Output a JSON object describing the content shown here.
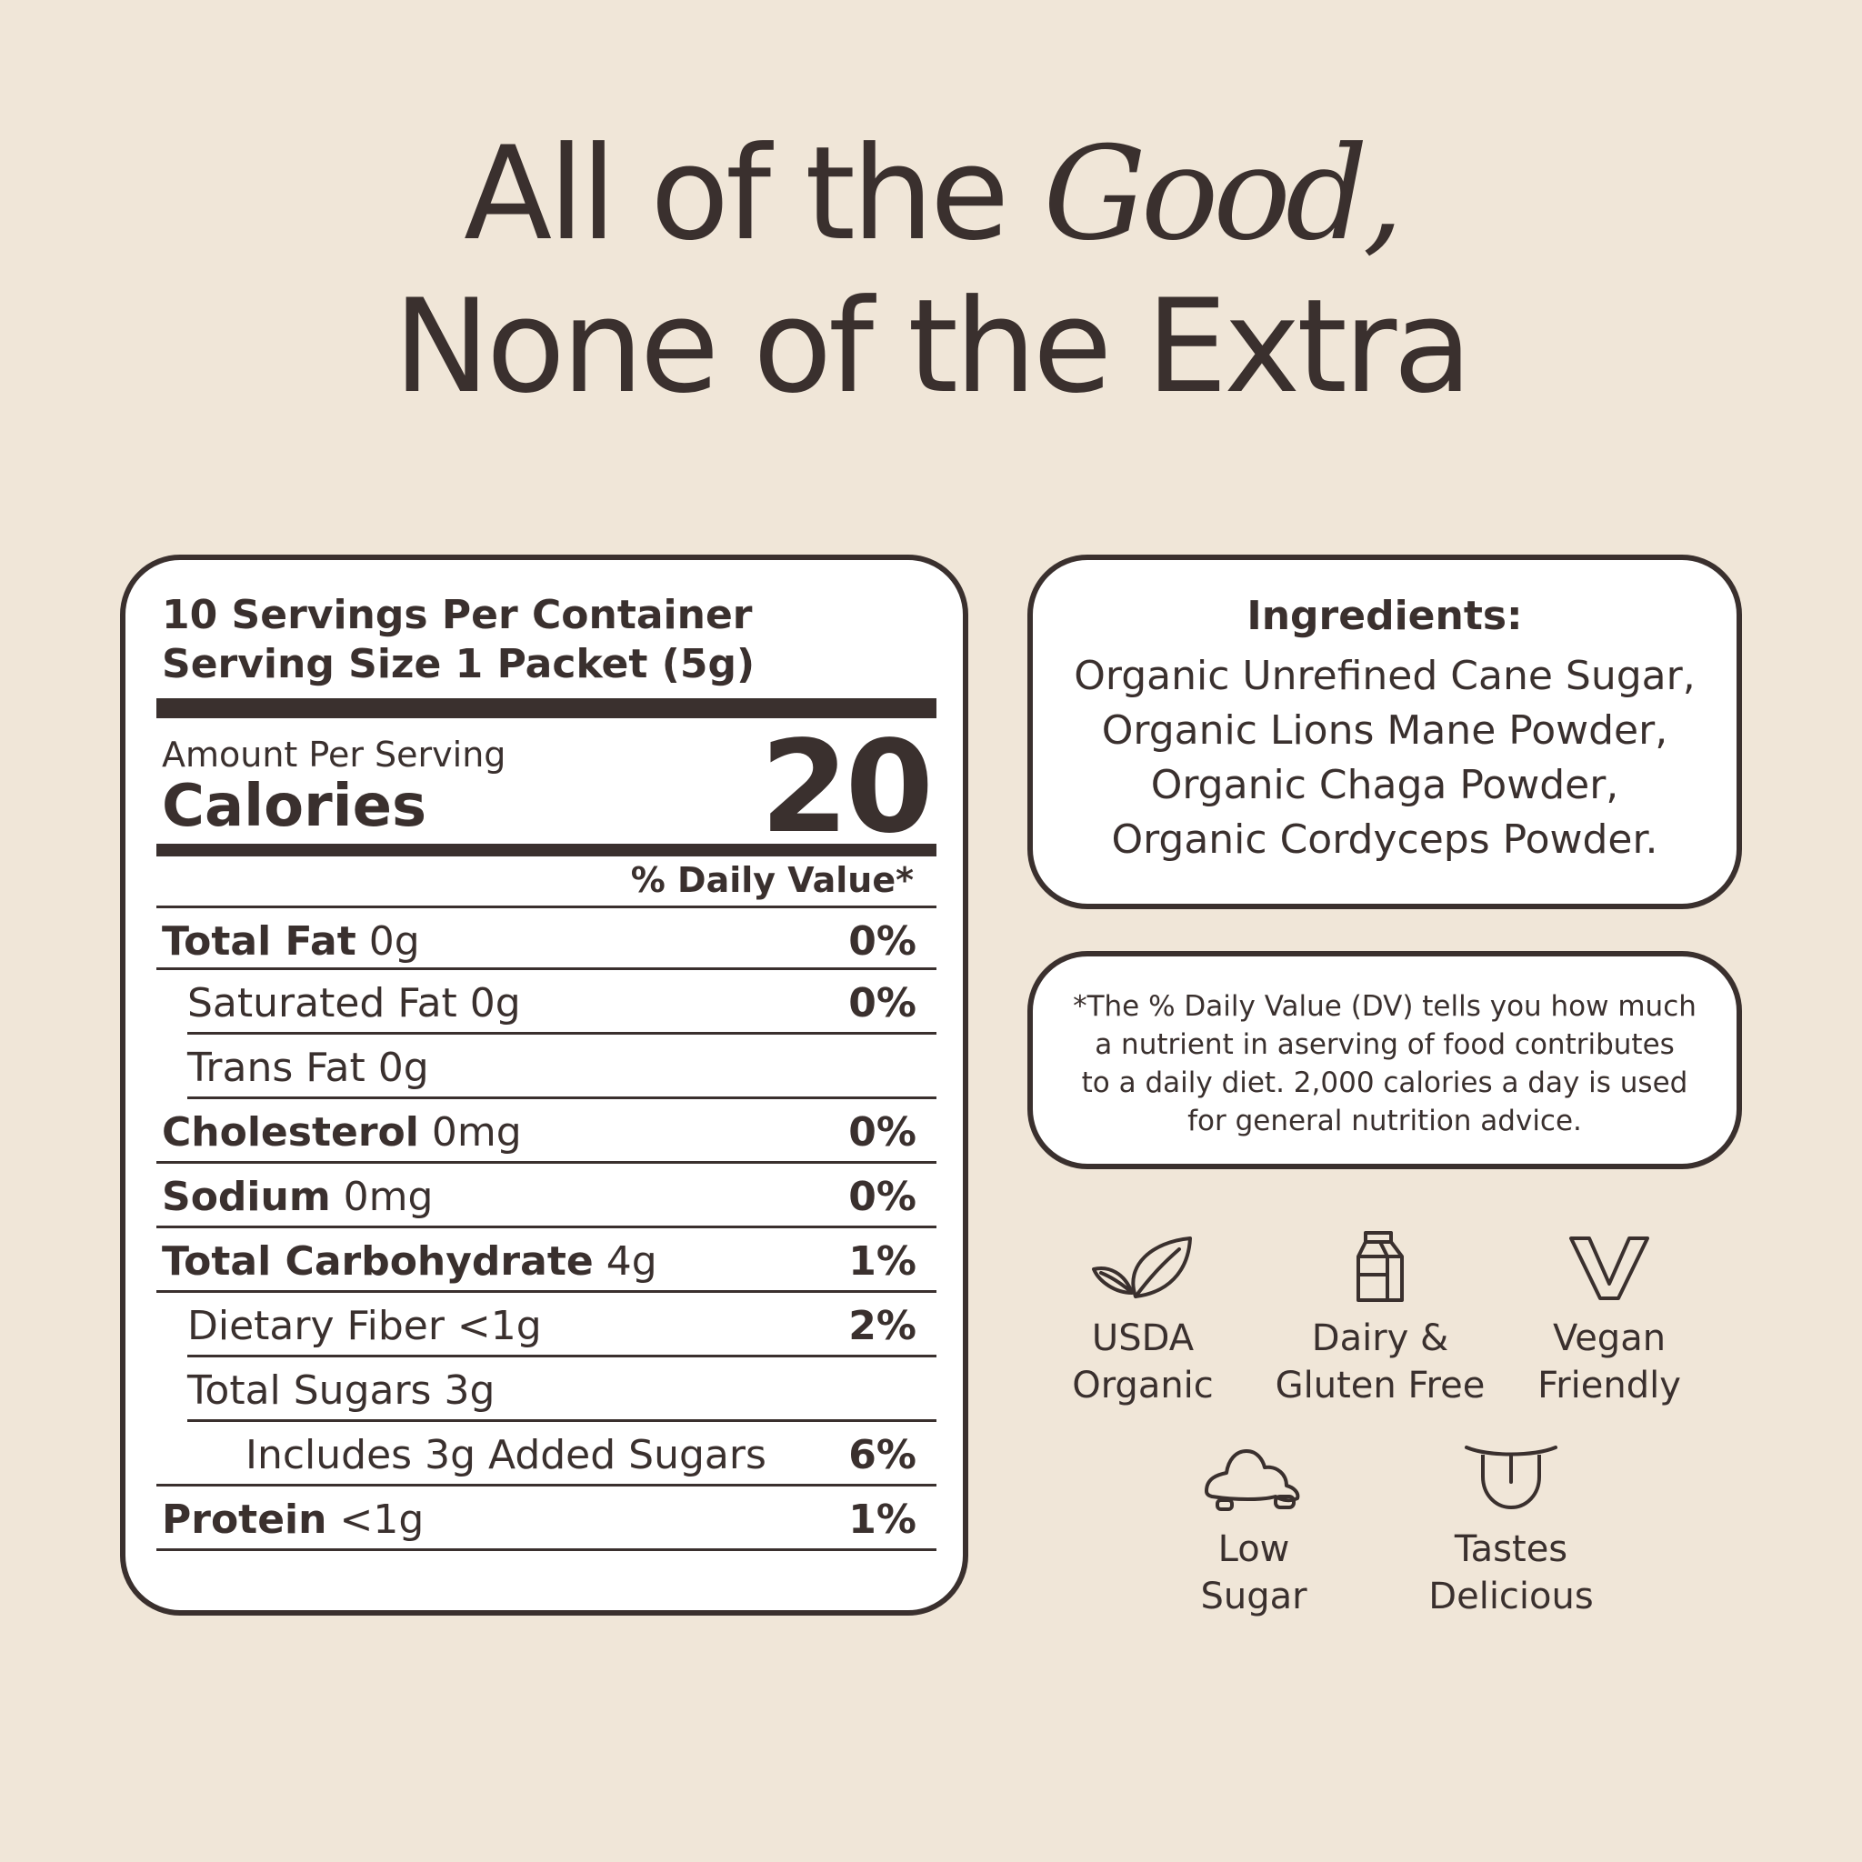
{
  "headline": {
    "line1_prefix": "All of the ",
    "line1_emphasis": "Good,",
    "line2": "None of the Extra"
  },
  "nutrition": {
    "servings": "10 Servings Per Container",
    "serving_size": "Serving Size 1 Packet (5g)",
    "amount_per_serving": "Amount Per Serving",
    "calories_label": "Calories",
    "calories_value": "20",
    "daily_value_header": "% Daily Value*",
    "rows": [
      {
        "name": "Total Fat",
        "amount": "0g",
        "dv": "0%"
      },
      {
        "name": "Saturated Fat 0g",
        "amount": "",
        "dv": "0%"
      },
      {
        "name": "Trans Fat 0g",
        "amount": "",
        "dv": ""
      },
      {
        "name": "Cholesterol",
        "amount": "0mg",
        "dv": "0%"
      },
      {
        "name": "Sodium",
        "amount": "0mg",
        "dv": "0%"
      },
      {
        "name": "Total Carbohydrate",
        "amount": "4g",
        "dv": "1%"
      },
      {
        "name": "Dietary Fiber <1g",
        "amount": "",
        "dv": "2%"
      },
      {
        "name": "Total Sugars 3g",
        "amount": "",
        "dv": ""
      },
      {
        "name": "Includes 3g Added Sugars",
        "amount": "",
        "dv": "6%"
      },
      {
        "name": "Protein",
        "amount": "<1g",
        "dv": "1%"
      }
    ]
  },
  "ingredients": {
    "title": "Ingredients:",
    "items": [
      "Organic Unrefined Cane Sugar,",
      "Organic Lions Mane Powder,",
      "Organic Chaga Powder,",
      "Organic Cordyceps Powder."
    ]
  },
  "disclaimer": [
    "*The % Daily Value (DV) tells you how much",
    "a nutrient in aserving of food contributes",
    "to a daily diet. 2,000 calories a day is used",
    "for general nutrition advice."
  ],
  "badges": [
    {
      "icon": "leaf-icon",
      "line1": "USDA",
      "line2": "Organic"
    },
    {
      "icon": "milk-carton-icon",
      "line1": "Dairy &",
      "line2": "Gluten Free"
    },
    {
      "icon": "v-icon",
      "line1": "Vegan",
      "line2": "Friendly"
    },
    {
      "icon": "sugar-pile-icon",
      "line1": "Low",
      "line2": "Sugar"
    },
    {
      "icon": "tongue-icon",
      "line1": "Tastes",
      "line2": "Delicious"
    }
  ],
  "colors": {
    "background": "#f0e6d8",
    "ink": "#3a302e",
    "card": "#ffffff"
  }
}
